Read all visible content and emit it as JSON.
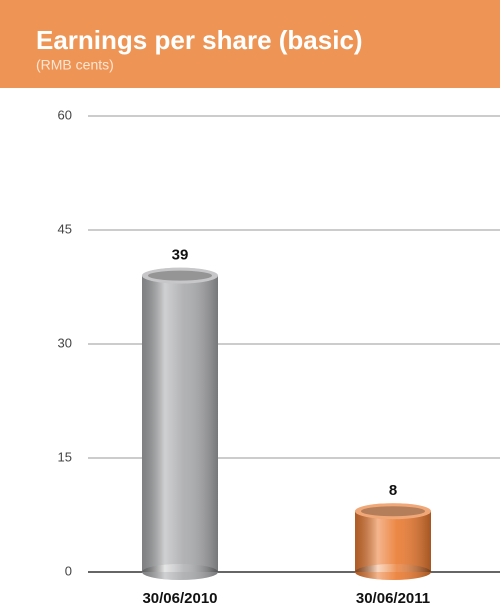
{
  "chart_data": {
    "type": "bar",
    "title": "Earnings per share (basic)",
    "subtitle": "(RMB cents)",
    "categories": [
      "30/06/2010",
      "30/06/2011"
    ],
    "values": [
      39,
      8
    ],
    "colors": [
      "#a9aaac",
      "#ea7a31"
    ],
    "ylim": [
      0,
      60
    ],
    "yticks": [
      0,
      15,
      30,
      45,
      60
    ],
    "grid": true
  }
}
